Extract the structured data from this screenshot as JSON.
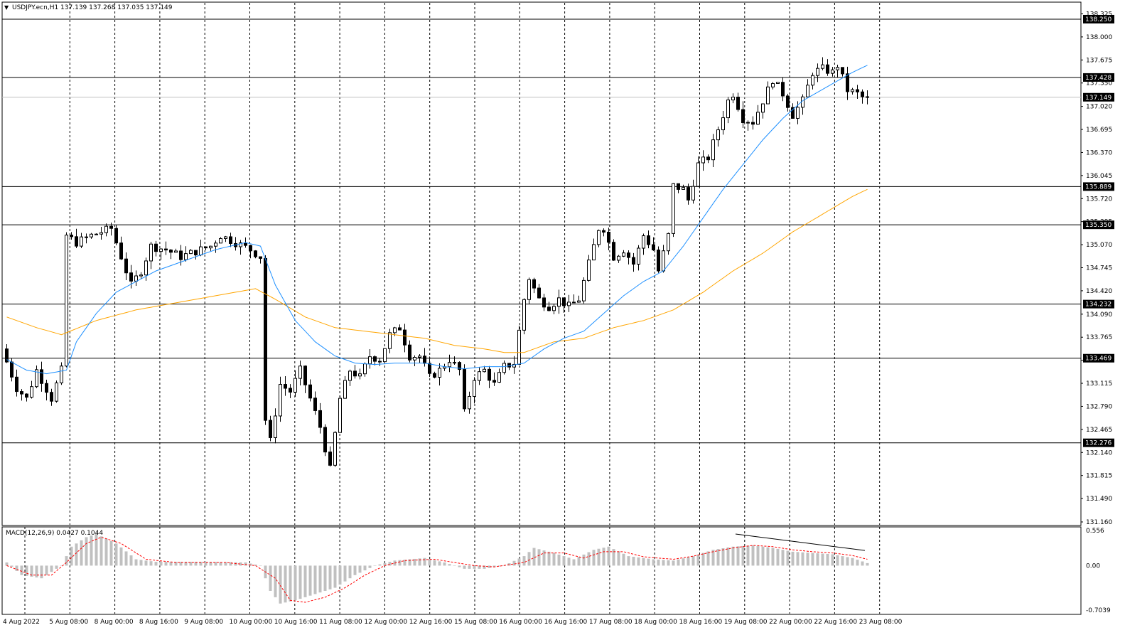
{
  "header": {
    "menu_glyph": "▼",
    "symbol_text": "USDJPY.ecn,H1  137.139 137.268 137.035 137.149"
  },
  "macd_label": "MACD(12,26,9) 0.0427 0.1044",
  "colors": {
    "background": "#ffffff",
    "grid": "#000000",
    "candle": "#000000",
    "sma_fast": "#1e90ff",
    "sma_slow": "#ffa500",
    "histogram": "#c0c0c0",
    "signal": "#ff0000",
    "badge_bg": "#000000",
    "badge_text": "#ffffff"
  },
  "chart_data": [
    {
      "type": "candlestick",
      "title": "USDJPY.ecn,H1",
      "ohlc_last": [
        137.139,
        137.268,
        137.035,
        137.149
      ],
      "ylim": [
        131.16,
        138.38
      ],
      "y_ticks": [
        "138.325",
        "138.000",
        "137.675",
        "137.350",
        "137.020",
        "136.695",
        "136.370",
        "136.045",
        "135.720",
        "135.395",
        "135.070",
        "134.745",
        "134.420",
        "134.090",
        "133.765",
        "133.440",
        "133.115",
        "132.790",
        "132.465",
        "132.140",
        "131.815",
        "131.490",
        "131.160"
      ],
      "x_labels": [
        "4 Aug 2022",
        "5 Aug 08:00",
        "8 Aug 00:00",
        "8 Aug 16:00",
        "9 Aug 08:00",
        "10 Aug 00:00",
        "10 Aug 16:00",
        "11 Aug 08:00",
        "12 Aug 00:00",
        "12 Aug 16:00",
        "15 Aug 08:00",
        "16 Aug 00:00",
        "16 Aug 16:00",
        "17 Aug 08:00",
        "18 Aug 00:00",
        "18 Aug 16:00",
        "19 Aug 08:00",
        "22 Aug 00:00",
        "22 Aug 16:00",
        "23 Aug 08:00"
      ],
      "horizontal_levels": [
        "138.250",
        "137.428",
        "137.149",
        "135.889",
        "135.350",
        "134.232",
        "133.469",
        "132.276"
      ],
      "path_anchors": [
        [
          0,
          133.6
        ],
        [
          3,
          133.05
        ],
        [
          5,
          132.9
        ],
        [
          7,
          133.3
        ],
        [
          10,
          132.9
        ],
        [
          12,
          133.3
        ],
        [
          13,
          135.2
        ],
        [
          15,
          135.1
        ],
        [
          18,
          135.2
        ],
        [
          22,
          135.3
        ],
        [
          24,
          134.9
        ],
        [
          26,
          134.5
        ],
        [
          28,
          134.7
        ],
        [
          30,
          135.05
        ],
        [
          33,
          135.0
        ],
        [
          36,
          134.9
        ],
        [
          40,
          135.0
        ],
        [
          42,
          135.05
        ],
        [
          44,
          135.2
        ],
        [
          47,
          135.1
        ],
        [
          50,
          135.0
        ],
        [
          52,
          134.9
        ],
        [
          53,
          132.6
        ],
        [
          54,
          132.3
        ],
        [
          56,
          133.1
        ],
        [
          58,
          133.0
        ],
        [
          60,
          133.3
        ],
        [
          62,
          132.9
        ],
        [
          64,
          132.5
        ],
        [
          66,
          131.9
        ],
        [
          68,
          132.9
        ],
        [
          70,
          133.3
        ],
        [
          72,
          133.2
        ],
        [
          74,
          133.5
        ],
        [
          76,
          133.45
        ],
        [
          78,
          133.8
        ],
        [
          80,
          133.9
        ],
        [
          82,
          133.5
        ],
        [
          84,
          133.5
        ],
        [
          86,
          133.2
        ],
        [
          88,
          133.3
        ],
        [
          90,
          133.45
        ],
        [
          92,
          133.3
        ],
        [
          93,
          132.7
        ],
        [
          95,
          133.2
        ],
        [
          97,
          133.3
        ],
        [
          99,
          133.1
        ],
        [
          101,
          133.35
        ],
        [
          103,
          133.4
        ],
        [
          105,
          134.3
        ],
        [
          106,
          134.6
        ],
        [
          108,
          134.3
        ],
        [
          110,
          134.2
        ],
        [
          112,
          134.3
        ],
        [
          114,
          134.2
        ],
        [
          116,
          134.3
        ],
        [
          118,
          134.8
        ],
        [
          120,
          135.3
        ],
        [
          121,
          135.3
        ],
        [
          123,
          134.9
        ],
        [
          125,
          135.0
        ],
        [
          127,
          134.8
        ],
        [
          129,
          135.2
        ],
        [
          131,
          135.0
        ],
        [
          132,
          134.7
        ],
        [
          134,
          135.2
        ],
        [
          135,
          135.9
        ],
        [
          137,
          135.85
        ],
        [
          138,
          135.7
        ],
        [
          140,
          136.2
        ],
        [
          142,
          136.3
        ],
        [
          144,
          136.7
        ],
        [
          146,
          137.1
        ],
        [
          147,
          137.2
        ],
        [
          149,
          136.85
        ],
        [
          151,
          136.8
        ],
        [
          153,
          137.1
        ],
        [
          155,
          137.4
        ],
        [
          157,
          137.2
        ],
        [
          159,
          136.9
        ],
        [
          161,
          137.1
        ],
        [
          163,
          137.5
        ],
        [
          165,
          137.55
        ],
        [
          167,
          137.5
        ],
        [
          168,
          137.6
        ],
        [
          170,
          137.25
        ],
        [
          172,
          137.2
        ],
        [
          173,
          137.149
        ]
      ],
      "sma_fast_anchors": [
        [
          0,
          133.45
        ],
        [
          4,
          133.3
        ],
        [
          8,
          133.25
        ],
        [
          12,
          133.3
        ],
        [
          14,
          133.7
        ],
        [
          18,
          134.1
        ],
        [
          22,
          134.4
        ],
        [
          26,
          134.55
        ],
        [
          30,
          134.7
        ],
        [
          36,
          134.85
        ],
        [
          42,
          135.0
        ],
        [
          48,
          135.1
        ],
        [
          51,
          135.05
        ],
        [
          54,
          134.5
        ],
        [
          58,
          134.0
        ],
        [
          62,
          133.7
        ],
        [
          66,
          133.5
        ],
        [
          70,
          133.4
        ],
        [
          74,
          133.38
        ],
        [
          78,
          133.4
        ],
        [
          84,
          133.4
        ],
        [
          88,
          133.35
        ],
        [
          92,
          133.32
        ],
        [
          96,
          133.35
        ],
        [
          100,
          133.35
        ],
        [
          104,
          133.4
        ],
        [
          108,
          133.6
        ],
        [
          112,
          133.75
        ],
        [
          116,
          133.85
        ],
        [
          120,
          134.1
        ],
        [
          124,
          134.35
        ],
        [
          128,
          134.55
        ],
        [
          132,
          134.7
        ],
        [
          136,
          135.05
        ],
        [
          140,
          135.45
        ],
        [
          144,
          135.85
        ],
        [
          148,
          136.2
        ],
        [
          152,
          136.55
        ],
        [
          156,
          136.85
        ],
        [
          160,
          137.1
        ],
        [
          165,
          137.3
        ],
        [
          170,
          137.5
        ],
        [
          173,
          137.6
        ]
      ],
      "sma_slow_anchors": [
        [
          0,
          134.05
        ],
        [
          6,
          133.9
        ],
        [
          11,
          133.8
        ],
        [
          18,
          134.0
        ],
        [
          26,
          134.15
        ],
        [
          34,
          134.25
        ],
        [
          42,
          134.35
        ],
        [
          50,
          134.45
        ],
        [
          54,
          134.3
        ],
        [
          60,
          134.05
        ],
        [
          66,
          133.9
        ],
        [
          72,
          133.85
        ],
        [
          78,
          133.8
        ],
        [
          84,
          133.75
        ],
        [
          90,
          133.65
        ],
        [
          96,
          133.6
        ],
        [
          100,
          133.55
        ],
        [
          104,
          133.55
        ],
        [
          110,
          133.7
        ],
        [
          116,
          133.75
        ],
        [
          122,
          133.9
        ],
        [
          128,
          134.0
        ],
        [
          134,
          134.15
        ],
        [
          140,
          134.4
        ],
        [
          146,
          134.7
        ],
        [
          152,
          134.95
        ],
        [
          158,
          135.25
        ],
        [
          164,
          135.5
        ],
        [
          170,
          135.75
        ],
        [
          173,
          135.85
        ]
      ]
    },
    {
      "type": "bar",
      "title": "MACD(12,26,9)",
      "values_last": [
        0.0427,
        0.1044
      ],
      "ylim": [
        -0.7039,
        0.556
      ],
      "y_ticks": [
        "0.556",
        "0.00",
        "-0.7039"
      ],
      "histogram_anchors": [
        [
          0,
          0.05
        ],
        [
          3,
          -0.15
        ],
        [
          7,
          -0.2
        ],
        [
          11,
          0.0
        ],
        [
          13,
          0.3
        ],
        [
          16,
          0.45
        ],
        [
          18,
          0.5
        ],
        [
          22,
          0.35
        ],
        [
          26,
          0.1
        ],
        [
          30,
          0.06
        ],
        [
          40,
          0.06
        ],
        [
          48,
          0.05
        ],
        [
          51,
          0.0
        ],
        [
          53,
          -0.4
        ],
        [
          55,
          -0.6
        ],
        [
          58,
          -0.55
        ],
        [
          62,
          -0.45
        ],
        [
          66,
          -0.35
        ],
        [
          70,
          -0.15
        ],
        [
          74,
          0.0
        ],
        [
          78,
          0.08
        ],
        [
          84,
          0.12
        ],
        [
          88,
          0.05
        ],
        [
          92,
          -0.05
        ],
        [
          96,
          -0.05
        ],
        [
          100,
          0.0
        ],
        [
          104,
          0.15
        ],
        [
          106,
          0.28
        ],
        [
          110,
          0.2
        ],
        [
          114,
          0.1
        ],
        [
          118,
          0.25
        ],
        [
          121,
          0.3
        ],
        [
          125,
          0.15
        ],
        [
          130,
          0.1
        ],
        [
          134,
          0.08
        ],
        [
          138,
          0.15
        ],
        [
          142,
          0.25
        ],
        [
          146,
          0.3
        ],
        [
          150,
          0.32
        ],
        [
          154,
          0.28
        ],
        [
          158,
          0.22
        ],
        [
          162,
          0.2
        ],
        [
          166,
          0.18
        ],
        [
          170,
          0.12
        ],
        [
          173,
          0.04
        ]
      ],
      "signal_anchors": [
        [
          0,
          0.0
        ],
        [
          5,
          -0.15
        ],
        [
          9,
          -0.15
        ],
        [
          12,
          0.05
        ],
        [
          16,
          0.35
        ],
        [
          19,
          0.45
        ],
        [
          23,
          0.35
        ],
        [
          28,
          0.1
        ],
        [
          34,
          0.05
        ],
        [
          44,
          0.05
        ],
        [
          50,
          0.0
        ],
        [
          54,
          -0.2
        ],
        [
          57,
          -0.55
        ],
        [
          60,
          -0.58
        ],
        [
          64,
          -0.5
        ],
        [
          68,
          -0.35
        ],
        [
          72,
          -0.15
        ],
        [
          76,
          0.0
        ],
        [
          80,
          0.08
        ],
        [
          86,
          0.1
        ],
        [
          90,
          0.05
        ],
        [
          94,
          0.0
        ],
        [
          98,
          -0.02
        ],
        [
          104,
          0.05
        ],
        [
          108,
          0.2
        ],
        [
          112,
          0.2
        ],
        [
          116,
          0.12
        ],
        [
          120,
          0.22
        ],
        [
          124,
          0.22
        ],
        [
          128,
          0.14
        ],
        [
          134,
          0.1
        ],
        [
          138,
          0.15
        ],
        [
          142,
          0.22
        ],
        [
          146,
          0.28
        ],
        [
          150,
          0.32
        ],
        [
          154,
          0.3
        ],
        [
          158,
          0.25
        ],
        [
          162,
          0.22
        ],
        [
          166,
          0.2
        ],
        [
          170,
          0.16
        ],
        [
          173,
          0.1
        ]
      ]
    }
  ]
}
